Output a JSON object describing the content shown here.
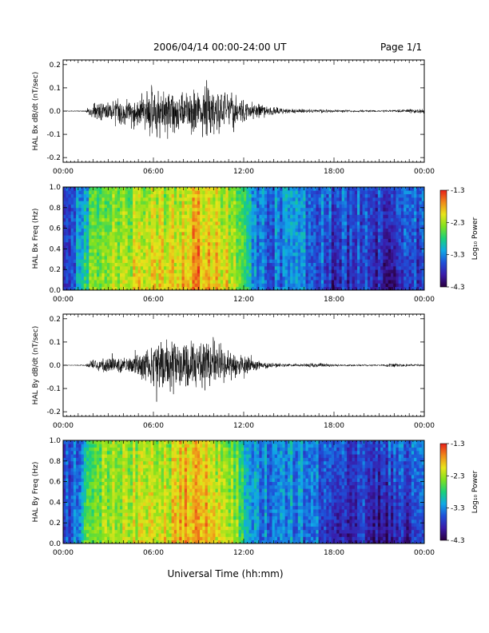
{
  "header": {
    "title": "2006/04/14  00:00-24:00 UT",
    "page": "Page 1/1"
  },
  "footer": {
    "xlabel": "Universal Time (hh:mm)"
  },
  "colors": {
    "trace": "#000000",
    "axis": "#000000",
    "colormap": [
      "#2a0040",
      "#3a1aa8",
      "#1f4fd8",
      "#10a8e6",
      "#1ad07a",
      "#7fe11f",
      "#e8e41a",
      "#f08a1a",
      "#e8201a"
    ]
  },
  "chart_data": [
    {
      "type": "line",
      "ylabel": "HAL Bx dB/dt (nT/sec)",
      "ylim": [
        -0.22,
        0.22
      ],
      "yticks": [
        "0.2",
        "0.1",
        "0.0",
        "-0.1",
        "-0.2"
      ],
      "xticks": [
        "00:00",
        "06:00",
        "12:00",
        "18:00",
        "00:00"
      ],
      "x_hours": [
        0,
        1.5,
        2,
        3,
        4,
        5,
        6,
        7,
        8,
        9,
        10,
        11,
        12,
        13,
        14,
        15,
        16,
        17,
        18,
        19,
        20,
        21,
        22,
        23,
        24
      ],
      "amplitude": [
        0.002,
        0.004,
        0.04,
        0.05,
        0.06,
        0.08,
        0.14,
        0.12,
        0.1,
        0.12,
        0.14,
        0.09,
        0.06,
        0.035,
        0.02,
        0.012,
        0.01,
        0.008,
        0.008,
        0.006,
        0.006,
        0.005,
        0.006,
        0.01,
        0.012
      ]
    },
    {
      "type": "heatmap",
      "ylabel": "HAL Bx Freq (Hz)",
      "ylim": [
        0,
        1.0
      ],
      "yticks": [
        "1.0",
        "0.8",
        "0.6",
        "0.4",
        "0.2",
        "0.0"
      ],
      "xticks": [
        "00:00",
        "06:00",
        "12:00",
        "18:00",
        "00:00"
      ],
      "colorbar": {
        "label": "Log₁₀ Power",
        "ticks": [
          "-1.3",
          "-2.3",
          "-3.3",
          "-4.3"
        ],
        "range": [
          -4.3,
          -1.3
        ]
      },
      "x_hours": [
        0,
        1,
        1.5,
        2,
        3,
        4,
        5,
        6,
        7,
        8,
        9,
        10,
        11,
        12,
        13,
        14,
        15,
        16,
        17,
        18,
        19,
        20,
        21,
        22,
        23,
        24
      ],
      "log_power_low": [
        -3.8,
        -3.2,
        -2.8,
        -2.4,
        -2.2,
        -2.1,
        -2.1,
        -2.0,
        -2.1,
        -1.8,
        -1.7,
        -1.9,
        -2.1,
        -2.7,
        -3.3,
        -3.5,
        -3.3,
        -3.4,
        -3.5,
        -3.9,
        -3.8,
        -3.6,
        -3.9,
        -4.0,
        -3.8,
        -3.6
      ],
      "log_power_high": [
        -3.6,
        -3.4,
        -3.3,
        -2.6,
        -2.4,
        -2.4,
        -2.4,
        -2.3,
        -2.4,
        -2.1,
        -2.0,
        -2.2,
        -2.4,
        -2.8,
        -3.3,
        -3.4,
        -3.2,
        -3.3,
        -3.4,
        -3.5,
        -3.5,
        -3.5,
        -3.6,
        -3.5,
        -3.5,
        -3.4
      ]
    },
    {
      "type": "line",
      "ylabel": "HAL By dB/dt (nT/sec)",
      "ylim": [
        -0.22,
        0.22
      ],
      "yticks": [
        "0.2",
        "0.1",
        "0.0",
        "-0.1",
        "-0.2"
      ],
      "xticks": [
        "00:00",
        "06:00",
        "12:00",
        "18:00",
        "00:00"
      ],
      "x_hours": [
        0,
        1.5,
        2,
        3,
        4,
        5,
        6,
        7,
        8,
        9,
        10,
        11,
        12,
        13,
        14,
        15,
        16,
        17,
        18,
        19,
        20,
        21,
        22,
        23,
        24
      ],
      "amplitude": [
        0.002,
        0.004,
        0.03,
        0.04,
        0.04,
        0.06,
        0.12,
        0.14,
        0.1,
        0.12,
        0.13,
        0.08,
        0.05,
        0.02,
        0.012,
        0.008,
        0.008,
        0.012,
        0.006,
        0.005,
        0.005,
        0.004,
        0.01,
        0.006,
        0.005
      ]
    },
    {
      "type": "heatmap",
      "ylabel": "HAL By Freq (Hz)",
      "ylim": [
        0,
        1.0
      ],
      "yticks": [
        "1.0",
        "0.8",
        "0.6",
        "0.4",
        "0.2",
        "0.0"
      ],
      "xticks": [
        "00:00",
        "06:00",
        "12:00",
        "18:00",
        "00:00"
      ],
      "colorbar": {
        "label": "Log₁₀ Power",
        "ticks": [
          "-1.3",
          "-2.3",
          "-3.3",
          "-4.3"
        ],
        "range": [
          -4.3,
          -1.3
        ]
      },
      "x_hours": [
        0,
        1,
        1.5,
        2,
        3,
        4,
        5,
        6,
        7,
        8,
        9,
        10,
        11,
        12,
        13,
        14,
        15,
        16,
        17,
        18,
        19,
        20,
        21,
        22,
        23,
        24
      ],
      "log_power_low": [
        -3.8,
        -3.1,
        -2.7,
        -2.4,
        -2.3,
        -2.2,
        -2.1,
        -2.1,
        -2.1,
        -1.8,
        -1.7,
        -1.9,
        -2.1,
        -2.8,
        -3.3,
        -3.5,
        -3.3,
        -3.4,
        -3.5,
        -4.0,
        -3.8,
        -3.7,
        -4.0,
        -4.0,
        -3.9,
        -3.7
      ],
      "log_power_high": [
        -3.6,
        -3.4,
        -3.3,
        -2.5,
        -2.4,
        -2.3,
        -2.3,
        -2.3,
        -2.3,
        -2.0,
        -1.9,
        -2.2,
        -2.4,
        -2.9,
        -3.3,
        -3.4,
        -3.2,
        -3.3,
        -3.4,
        -3.5,
        -3.5,
        -3.5,
        -3.6,
        -3.5,
        -3.5,
        -3.4
      ]
    }
  ]
}
